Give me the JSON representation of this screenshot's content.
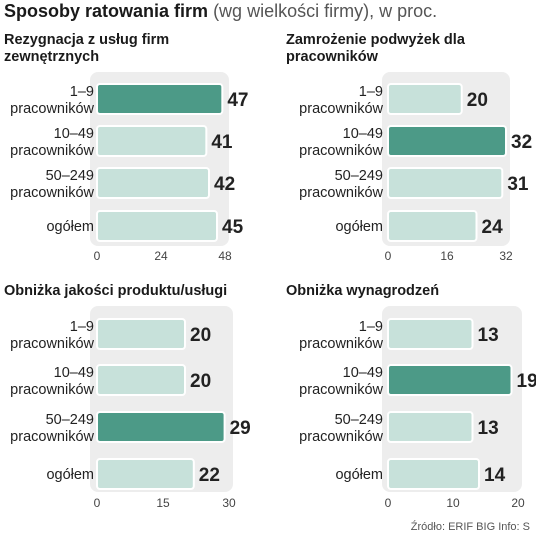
{
  "header": {
    "title": "Sposoby ratowania firm",
    "subtitle": "(wg wielkości firmy), w proc."
  },
  "source": "Źródło: ERIF BIG   Info: S",
  "colors": {
    "panel_bg": "#ededed",
    "bar_normal": "#c7e1da",
    "bar_highlight": "#4c9a87",
    "bar_stroke": "#ffffff"
  },
  "chart_data": [
    {
      "type": "bar",
      "orientation": "horizontal",
      "title": "Rezygnacja z usług firm zewnętrznych",
      "categories": [
        "1–9 pracowników",
        "10–49 pracowników",
        "50–249 pracowników",
        "ogółem"
      ],
      "values": [
        47,
        41,
        42,
        45
      ],
      "highlight": [
        0
      ],
      "xlim": [
        0,
        48
      ],
      "xticks": [
        0,
        24,
        48
      ]
    },
    {
      "type": "bar",
      "orientation": "horizontal",
      "title": "Zamrożenie podwyżek dla pracowników",
      "categories": [
        "1–9 pracowników",
        "10–49 pracowników",
        "50–249 pracowników",
        "ogółem"
      ],
      "values": [
        20,
        32,
        31,
        24
      ],
      "highlight": [
        1
      ],
      "xlim": [
        0,
        32
      ],
      "xticks": [
        0,
        16,
        32
      ]
    },
    {
      "type": "bar",
      "orientation": "horizontal",
      "title": "Obniżka jakości produktu/usługi",
      "categories": [
        "1–9 pracowników",
        "10–49 pracowników",
        "50–249 pracowników",
        "ogółem"
      ],
      "values": [
        20,
        20,
        29,
        22
      ],
      "highlight": [
        2
      ],
      "xlim": [
        0,
        30
      ],
      "xticks": [
        0,
        15,
        30
      ]
    },
    {
      "type": "bar",
      "orientation": "horizontal",
      "title": "Obniżka wynagrodzeń",
      "categories": [
        "1–9 pracowników",
        "10–49 pracowników",
        "50–249 pracowników",
        "ogółem"
      ],
      "values": [
        13,
        19,
        13,
        14
      ],
      "highlight": [
        1
      ],
      "xlim": [
        0,
        20
      ],
      "xticks": [
        0,
        10,
        20
      ]
    }
  ]
}
